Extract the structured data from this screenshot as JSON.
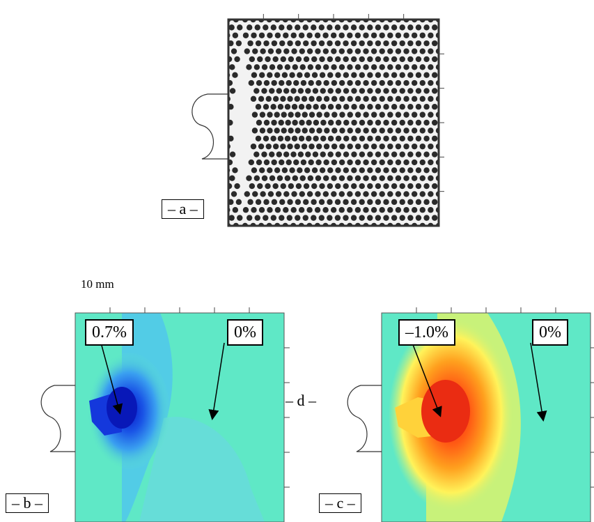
{
  "panel_a": {
    "label": "– a –"
  },
  "panel_b": {
    "label": "– b –",
    "scale_label": "10 mm",
    "callout_left": "0.7%",
    "callout_right": "0%"
  },
  "panel_c": {
    "label": "– c –",
    "callout_left": "–1.0%",
    "callout_right": "0%"
  },
  "marker_d": "– d –",
  "colors": {
    "bg_cyan": "#5fe8c6",
    "blue_deep": "#0a1fd6",
    "red": "#f03a14",
    "orange": "#ff8a14",
    "yellow": "#fff35a"
  }
}
